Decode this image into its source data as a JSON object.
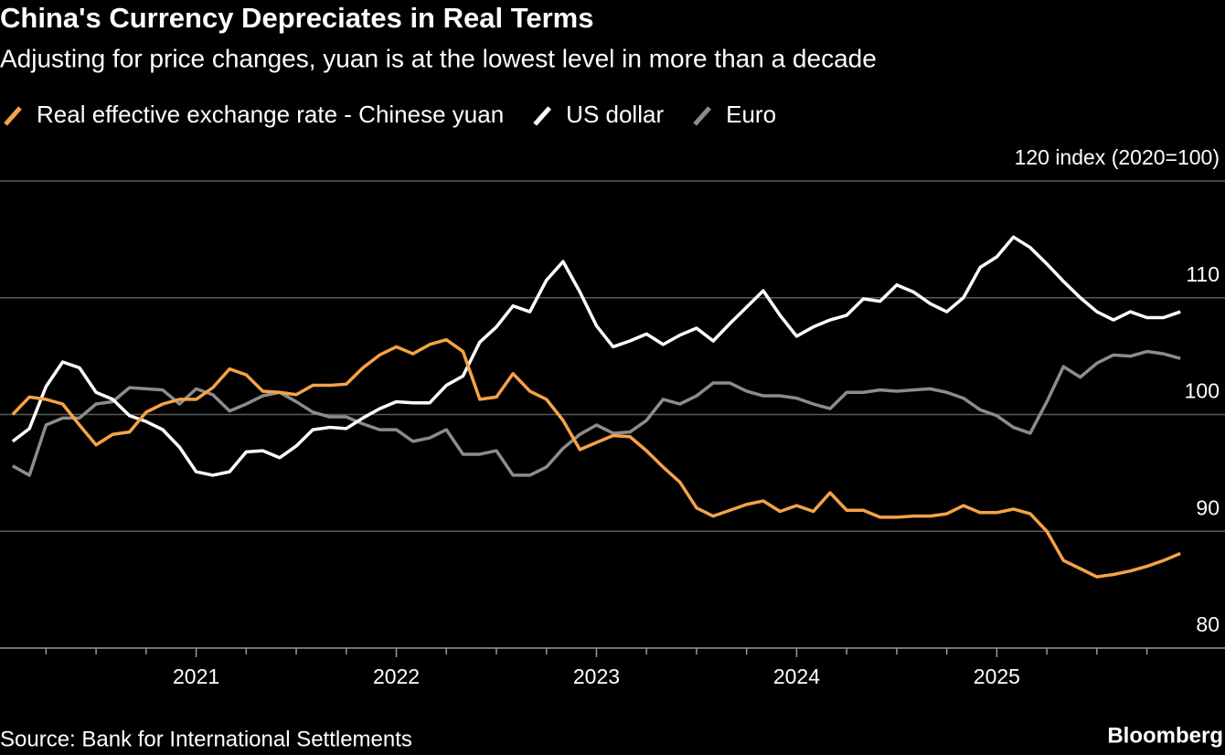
{
  "chart_data": {
    "type": "line",
    "title": "China's Currency Depreciates in Real Terms",
    "subtitle": "Adjusting for price changes, yuan is at the lowest level in more than a decade",
    "source": "Source: Bank for International Settlements",
    "brand": "Bloomberg",
    "x": [
      2020.083,
      2020.167,
      2020.25,
      2020.333,
      2020.417,
      2020.5,
      2020.583,
      2020.667,
      2020.75,
      2020.833,
      2020.917,
      2021,
      2021.083,
      2021.167,
      2021.25,
      2021.333,
      2021.417,
      2021.5,
      2021.583,
      2021.667,
      2021.75,
      2021.833,
      2021.917,
      2022,
      2022.083,
      2022.167,
      2022.25,
      2022.333,
      2022.417,
      2022.5,
      2022.583,
      2022.667,
      2022.75,
      2022.833,
      2022.917,
      2023,
      2023.083,
      2023.167,
      2023.25,
      2023.333,
      2023.417,
      2023.5,
      2023.583,
      2023.667,
      2023.75,
      2023.833,
      2023.917,
      2024,
      2024.083,
      2024.167,
      2024.25,
      2024.333,
      2024.417,
      2024.5,
      2024.583,
      2024.667,
      2024.75,
      2024.833,
      2024.917,
      2025,
      2025.083,
      2025.167,
      2025.25,
      2025.333,
      2025.417,
      2025.5,
      2025.583,
      2025.667,
      2025.75,
      2025.833,
      2025.917
    ],
    "series": [
      {
        "name": "Real effective exchange rate - Chinese yuan",
        "color": "#f5a347",
        "values": [
          100.0,
          101.5,
          101.3,
          100.9,
          99.1,
          97.4,
          98.3,
          98.5,
          100.2,
          100.9,
          101.3,
          101.3,
          102.3,
          103.9,
          103.4,
          102.0,
          101.9,
          101.7,
          102.5,
          102.5,
          102.6,
          104.0,
          105.1,
          105.8,
          105.2,
          106.0,
          106.4,
          105.4,
          101.3,
          101.5,
          103.5,
          102.0,
          101.3,
          99.5,
          97.0,
          97.6,
          98.2,
          98.1,
          96.9,
          95.5,
          94.2,
          92.0,
          91.3,
          91.8,
          92.3,
          92.6,
          91.7,
          92.2,
          91.7,
          93.3,
          91.8,
          91.8,
          91.2,
          91.2,
          91.3,
          91.3,
          91.5,
          92.2,
          91.6,
          91.6,
          91.9,
          91.5,
          90.0,
          87.5,
          86.8,
          86.1,
          86.3,
          86.6,
          87.0,
          87.5,
          88.1
        ]
      },
      {
        "name": "US dollar",
        "color": "#ffffff",
        "values": [
          97.7,
          98.8,
          102.4,
          104.5,
          104.0,
          101.9,
          101.3,
          99.9,
          99.4,
          98.7,
          97.2,
          95.1,
          94.8,
          95.1,
          96.8,
          96.9,
          96.3,
          97.3,
          98.7,
          98.9,
          98.8,
          99.7,
          100.5,
          101.1,
          101.0,
          101.0,
          102.5,
          103.3,
          106.2,
          107.5,
          109.3,
          108.8,
          111.5,
          113.1,
          110.5,
          107.6,
          105.8,
          106.3,
          106.9,
          106.0,
          106.8,
          107.4,
          106.3,
          107.8,
          109.2,
          110.6,
          108.5,
          106.7,
          107.5,
          108.1,
          108.5,
          109.9,
          109.7,
          111.1,
          110.5,
          109.5,
          108.8,
          110.0,
          112.6,
          113.5,
          115.2,
          114.3,
          112.9,
          111.4,
          110.0,
          108.8,
          108.1,
          108.8,
          108.3,
          108.3,
          108.8
        ]
      },
      {
        "name": "Euro",
        "color": "#8c8c8c",
        "values": [
          95.6,
          94.8,
          99.1,
          99.7,
          99.7,
          100.9,
          101.1,
          102.3,
          102.2,
          102.1,
          100.9,
          102.2,
          101.7,
          100.3,
          100.9,
          101.6,
          101.9,
          101.1,
          100.2,
          99.8,
          99.8,
          99.2,
          98.7,
          98.7,
          97.7,
          98.0,
          98.7,
          96.6,
          96.6,
          96.9,
          94.8,
          94.8,
          95.5,
          97.1,
          98.3,
          99.1,
          98.4,
          98.5,
          99.5,
          101.3,
          100.9,
          101.6,
          102.7,
          102.7,
          102.0,
          101.6,
          101.6,
          101.4,
          100.9,
          100.5,
          101.9,
          101.9,
          102.1,
          102.0,
          102.1,
          102.2,
          101.9,
          101.4,
          100.4,
          99.9,
          98.9,
          98.4,
          101.1,
          104.1,
          103.2,
          104.4,
          105.1,
          105.0,
          105.4,
          105.2,
          104.8
        ]
      }
    ],
    "xlim": [
      2020.02,
      2026.14
    ],
    "xticks": [
      2021,
      2022,
      2023,
      2024,
      2025
    ],
    "ylim": [
      80,
      120
    ],
    "yticks": [
      80,
      90,
      100,
      110,
      {
        "value": 120,
        "label": "120 index (2020=100)"
      }
    ],
    "grid": true
  }
}
